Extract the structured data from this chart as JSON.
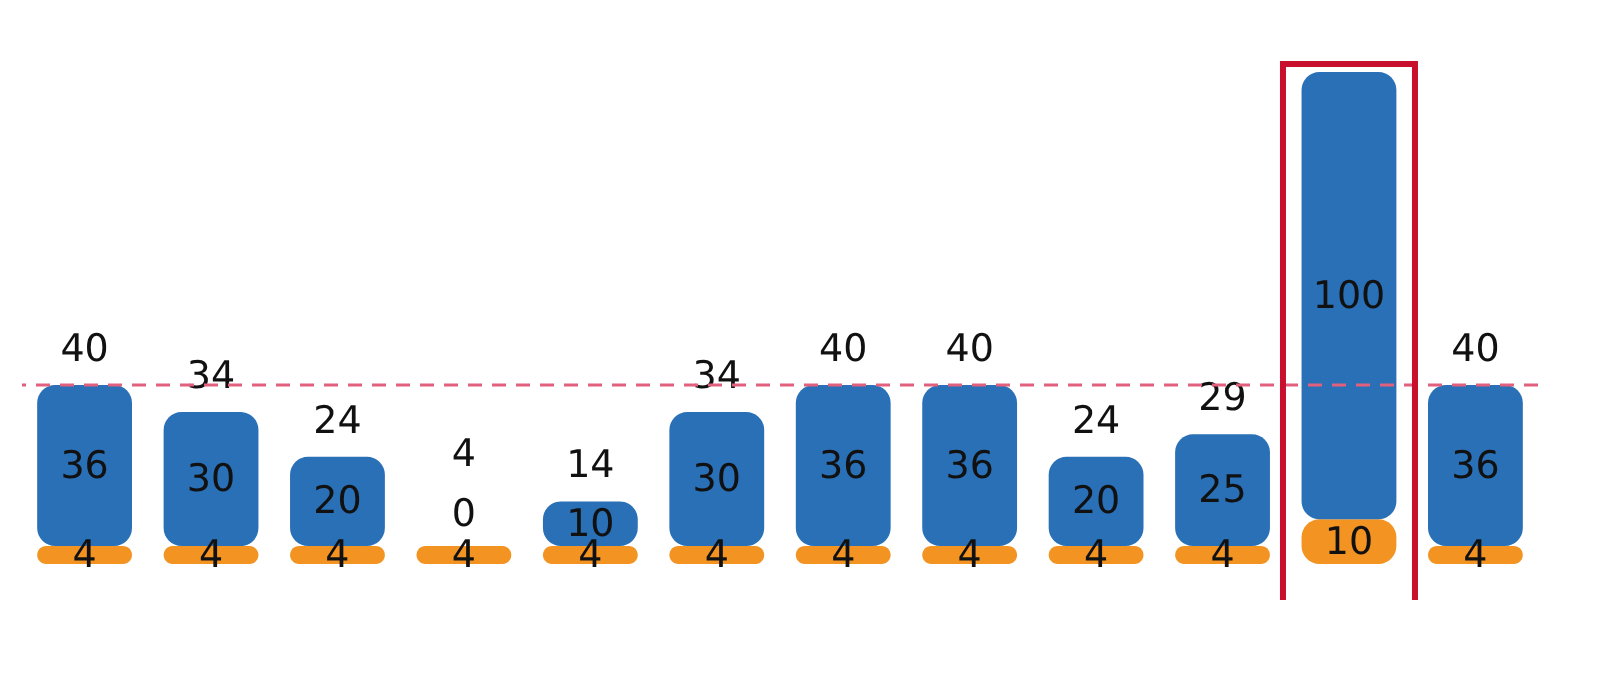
{
  "chart_data": {
    "type": "bar",
    "stacked": true,
    "data_labels": true,
    "categories": [
      null,
      null,
      null,
      null,
      null,
      null,
      null,
      null,
      null,
      null,
      null,
      null
    ],
    "series": [
      {
        "color": "#f39322",
        "values": [
          4,
          4,
          4,
          4,
          4,
          4,
          4,
          4,
          4,
          4,
          10,
          4
        ]
      },
      {
        "color": "#2a70b7",
        "values": [
          36,
          30,
          20,
          0,
          10,
          30,
          36,
          36,
          20,
          25,
          100,
          36
        ]
      }
    ],
    "totals": [
      "40",
      "34",
      "24",
      "4",
      "14",
      "34",
      "40",
      "40",
      "24",
      "29",
      null,
      "40"
    ],
    "ref_lines": [
      {
        "axis": "y",
        "value": 40,
        "color": "#e0607e",
        "line_style": "dashed"
      }
    ],
    "grid": false
  }
}
